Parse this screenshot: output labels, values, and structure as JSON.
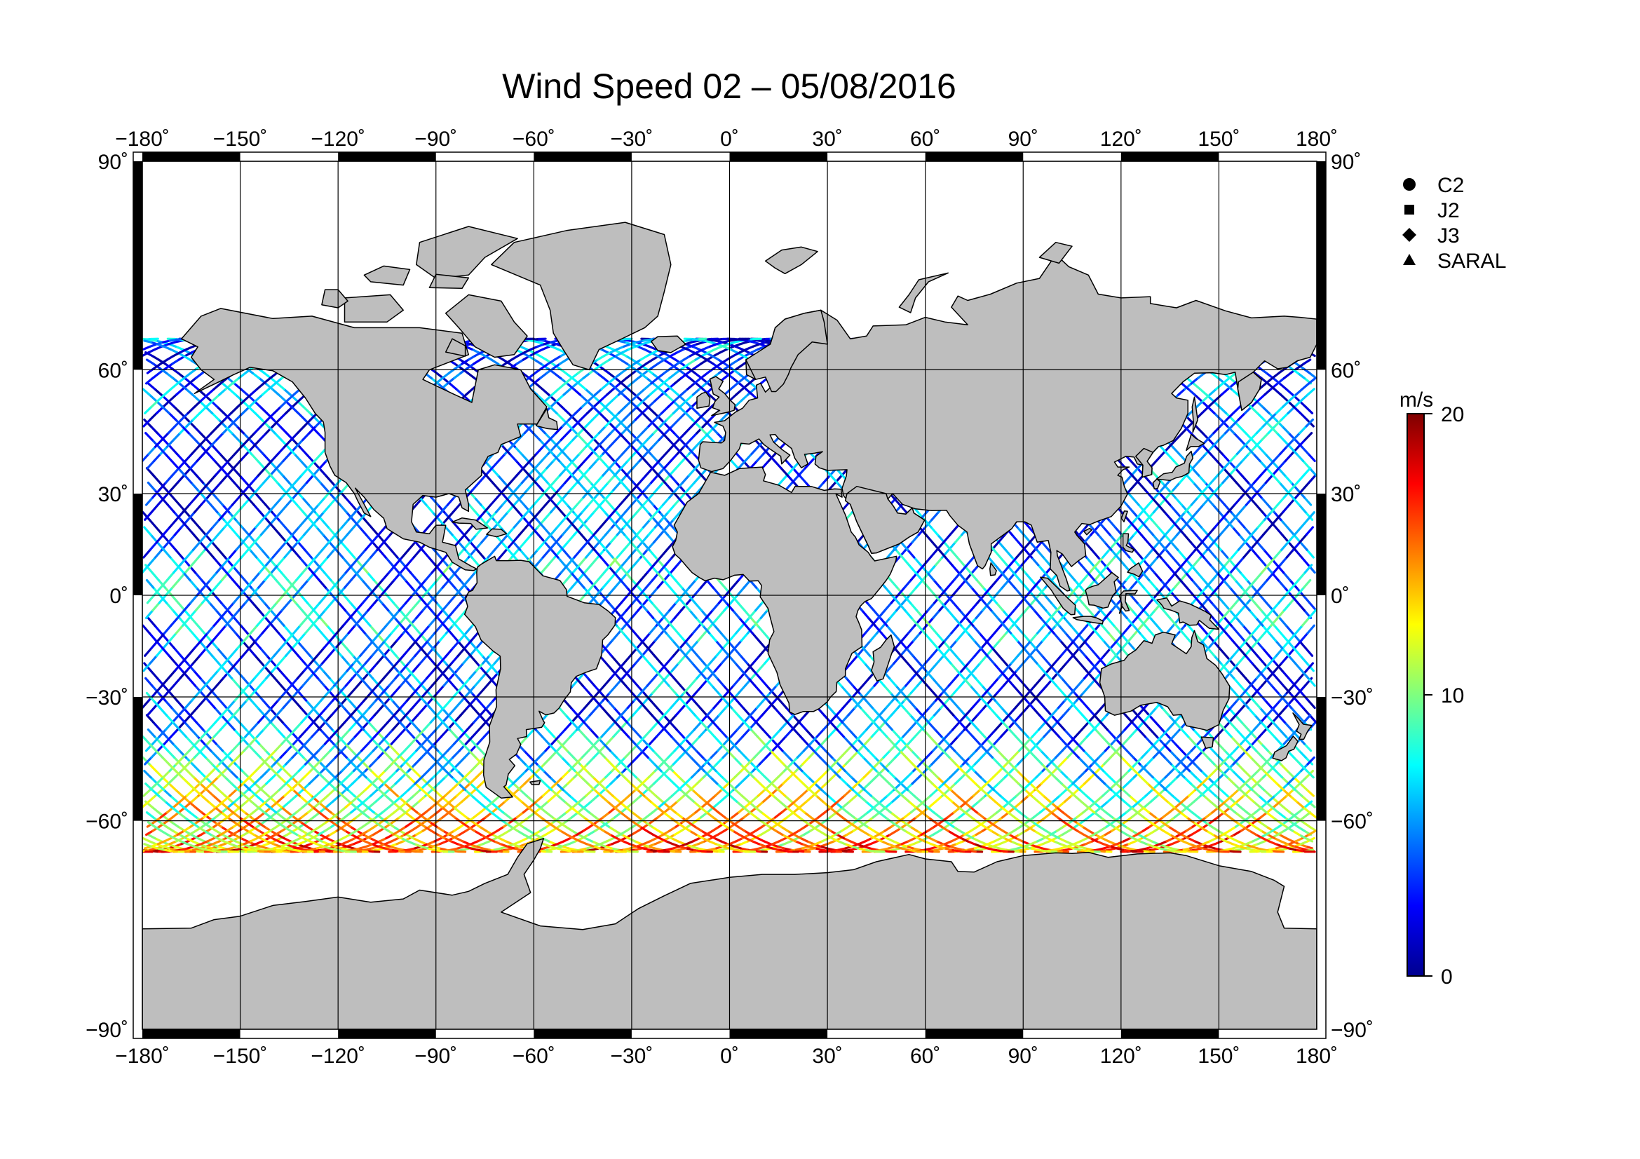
{
  "title": "Wind Speed 02 – 05/08/2016",
  "axes": {
    "lon_ticks": [
      "−180˚",
      "−150˚",
      "−120˚",
      "−90˚",
      "−60˚",
      "−30˚",
      "0˚",
      "30˚",
      "60˚",
      "90˚",
      "120˚",
      "150˚",
      "180˚"
    ],
    "lat_ticks": [
      "90˚",
      "60˚",
      "30˚",
      "0˚",
      "−30˚",
      "−60˚",
      "−90˚"
    ],
    "lon_values": [
      -180,
      -150,
      -120,
      -90,
      -60,
      -30,
      0,
      30,
      60,
      90,
      120,
      150,
      180
    ],
    "lat_values": [
      90,
      60,
      30,
      0,
      -30,
      -60,
      -90
    ]
  },
  "legend": {
    "items": [
      {
        "label": "C2",
        "marker": "circle"
      },
      {
        "label": "J2",
        "marker": "square"
      },
      {
        "label": "J3",
        "marker": "diamond"
      },
      {
        "label": "SARAL",
        "marker": "triangle"
      }
    ]
  },
  "colorbar": {
    "unit": "m/s",
    "min": 0,
    "max": 20,
    "tick_labels": [
      "20",
      "10",
      "0"
    ],
    "tick_values": [
      20,
      10,
      0
    ],
    "colormap": [
      "#00008f",
      "#0000ff",
      "#007fff",
      "#00ffff",
      "#7fff7f",
      "#ffff00",
      "#ff7f00",
      "#ff0000",
      "#7f0000"
    ]
  },
  "colors": {
    "land": "#bebebe",
    "ocean": "#ffffff",
    "frame": "#000000"
  },
  "chart_data": {
    "type": "map",
    "projection": "Miller cylindrical",
    "xlim": [
      -180,
      180
    ],
    "ylim": [
      -90,
      90
    ],
    "grid": true,
    "variable": "wind speed",
    "units": "m/s",
    "satellites": [
      "C2",
      "J2",
      "J3",
      "SARAL"
    ],
    "track_coverage_lat": [
      -66,
      66
    ]
  }
}
